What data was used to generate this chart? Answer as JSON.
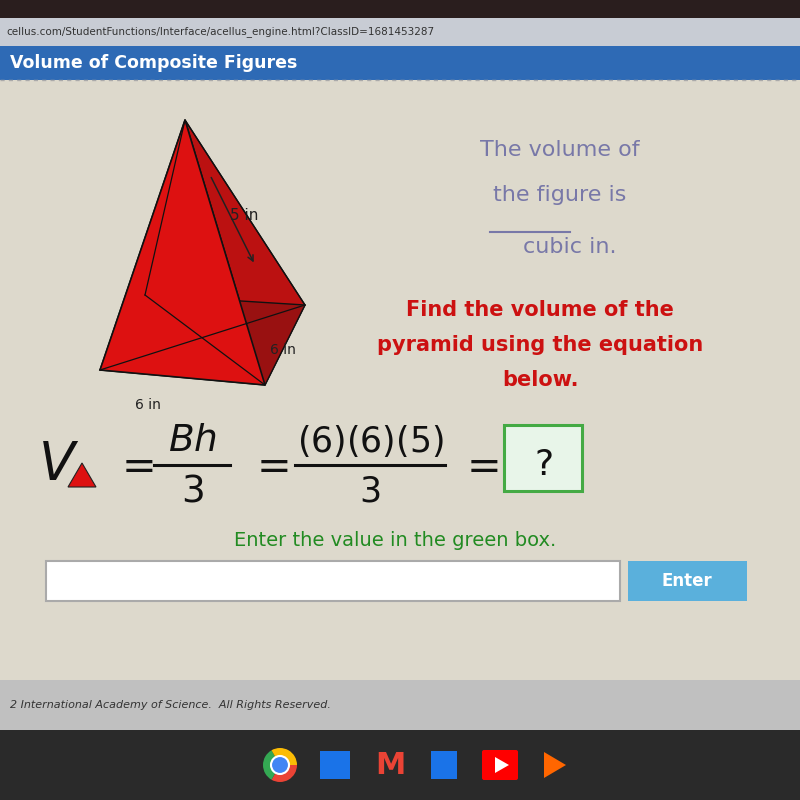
{
  "browser_url": "cellus.com/StudentFunctions/Interface/acellus_engine.html?ClassID=1681453287",
  "header_text": "Volume of Composite Figures",
  "header_bg": "#2e6ab5",
  "header_text_color": "#ffffff",
  "outer_bg": "#b0b4bc",
  "url_bar_bg": "#c8ccd4",
  "content_bg": "#ddd9cc",
  "top_text_line1": "The volume of",
  "top_text_line2": "the figure is",
  "top_text_line3": "cubic in.",
  "top_text_color": "#7878a8",
  "label_5in": "5 in",
  "label_6in_side": "6 in",
  "label_6in_base": "6 in",
  "label_color": "#222222",
  "instruction_line1": "Find the volume of the",
  "instruction_line2": "pyramid using the equation",
  "instruction_line3": "below.",
  "instruction_color": "#cc1111",
  "equation_color": "#111111",
  "green_text": "Enter the value in the green box.",
  "green_text_color": "#228b22",
  "enter_btn_color": "#5ab0dc",
  "enter_btn_text": "Enter",
  "footer_text": "2 International Academy of Science.  All Rights Reserved.",
  "pyramid_color": "#dd1111",
  "pyramid_dark": "#991111",
  "pyramid_medium": "#bb1111"
}
